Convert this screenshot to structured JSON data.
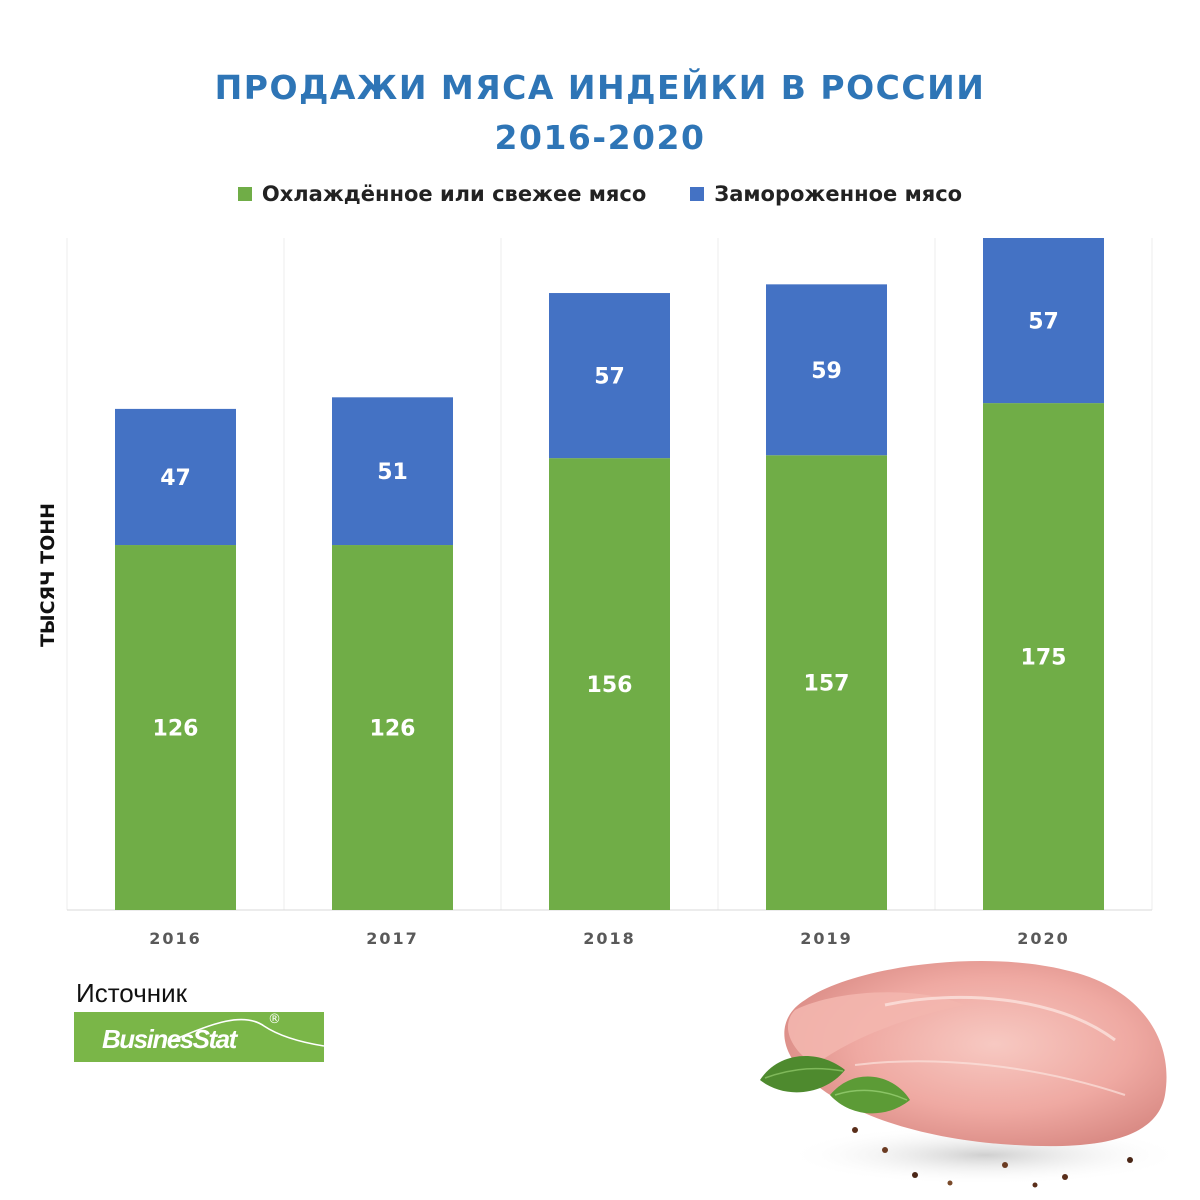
{
  "title_line1": "ПРОДАЖИ МЯСА ИНДЕЙКИ В РОССИИ",
  "title_line2": "2016-2020",
  "y_axis_label": "ТЫСЯЧ ТОНН",
  "source_label": "Источник",
  "logo_text": "BusinesStat",
  "logo_mark": "®",
  "colors": {
    "chilled": "#70AD47",
    "frozen": "#4472C4",
    "title": "#2E75B6",
    "logo": "#7AB648"
  },
  "chart_data": {
    "type": "bar",
    "stacked": true,
    "categories": [
      "2016",
      "2017",
      "2018",
      "2019",
      "2020"
    ],
    "series": [
      {
        "name": "Охлаждённое или свежее мясо",
        "values": [
          126,
          126,
          156,
          157,
          175
        ]
      },
      {
        "name": "Замороженное мясо",
        "values": [
          47,
          51,
          57,
          59,
          57
        ]
      }
    ],
    "legend_position": "top",
    "grid": false,
    "ylim": [
      0,
      232
    ]
  }
}
